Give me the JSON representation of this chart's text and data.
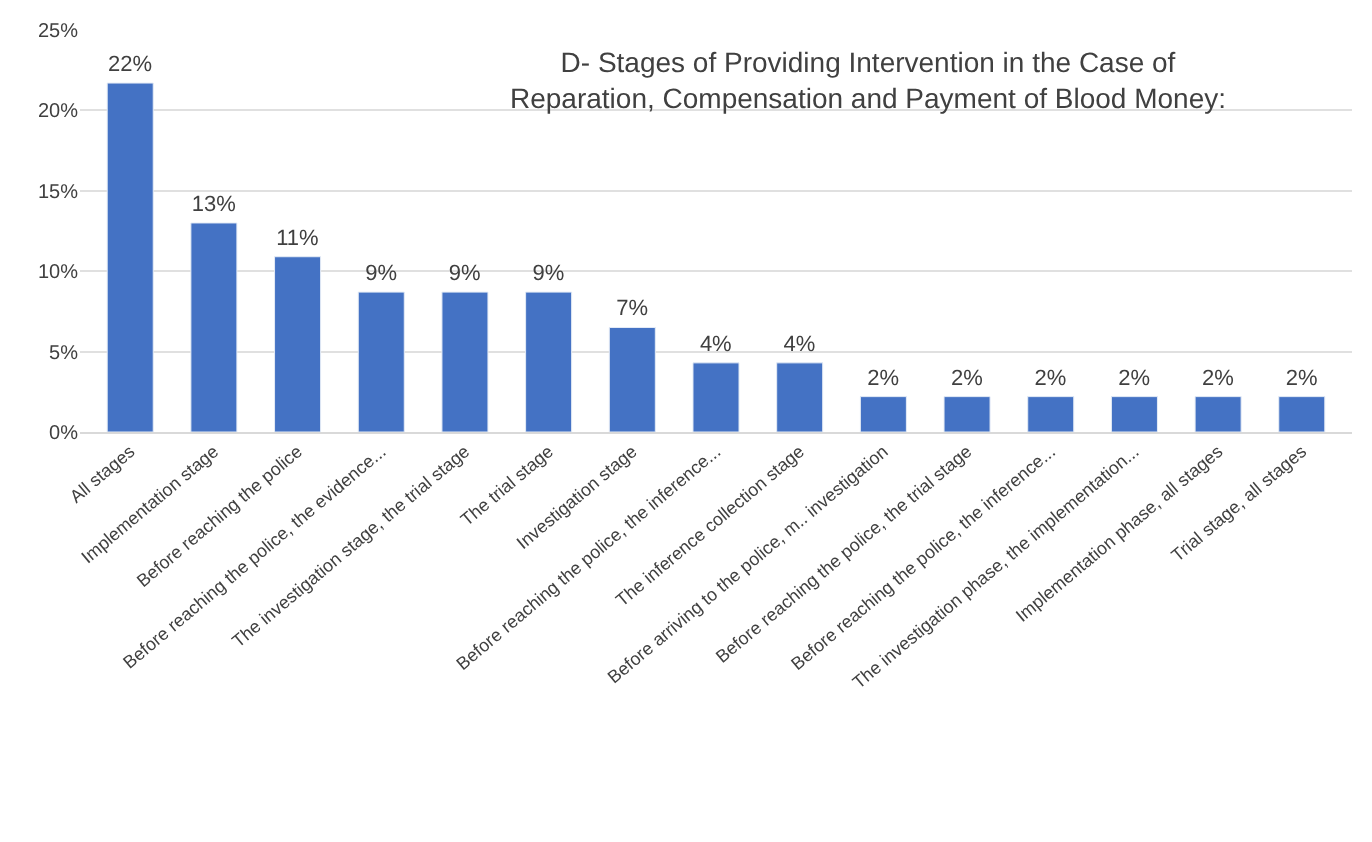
{
  "chart_data": {
    "type": "bar",
    "title": "D- Stages of Providing Intervention in the Case of\nReparation, Compensation and Payment of Blood Money:",
    "categories": [
      "All stages",
      "Implementation stage",
      "Before reaching the police",
      "Before reaching the police, the evidence...",
      "The investigation stage, the trial stage",
      "The trial stage",
      "Investigation stage",
      "Before reaching the police, the inference...",
      "The inference collection stage",
      "Before arriving to the police, m.. investigation",
      "Before reaching the police, the trial stage",
      "Before reaching the police, the inference...",
      "The investigation phase, the implementation...",
      "Implementation phase, all stages",
      "Trial stage, all stages"
    ],
    "values": [
      21.7,
      13.0,
      10.9,
      8.7,
      8.7,
      8.7,
      6.5,
      4.3,
      4.3,
      2.2,
      2.2,
      2.2,
      2.2,
      2.2,
      2.2
    ],
    "value_labels": [
      "22%",
      "13%",
      "11%",
      "9%",
      "9%",
      "9%",
      "7%",
      "4%",
      "4%",
      "2%",
      "2%",
      "2%",
      "2%",
      "2%",
      "2%"
    ],
    "color": "#4472c4",
    "ylim": [
      0,
      25
    ],
    "yticks": [
      {
        "value": 0,
        "label": "0%"
      },
      {
        "value": 5,
        "label": "5%"
      },
      {
        "value": 10,
        "label": "10%"
      },
      {
        "value": 15,
        "label": "15%"
      },
      {
        "value": 20,
        "label": "20%"
      },
      {
        "value": 25,
        "label": "25%"
      }
    ],
    "grid": "y"
  }
}
